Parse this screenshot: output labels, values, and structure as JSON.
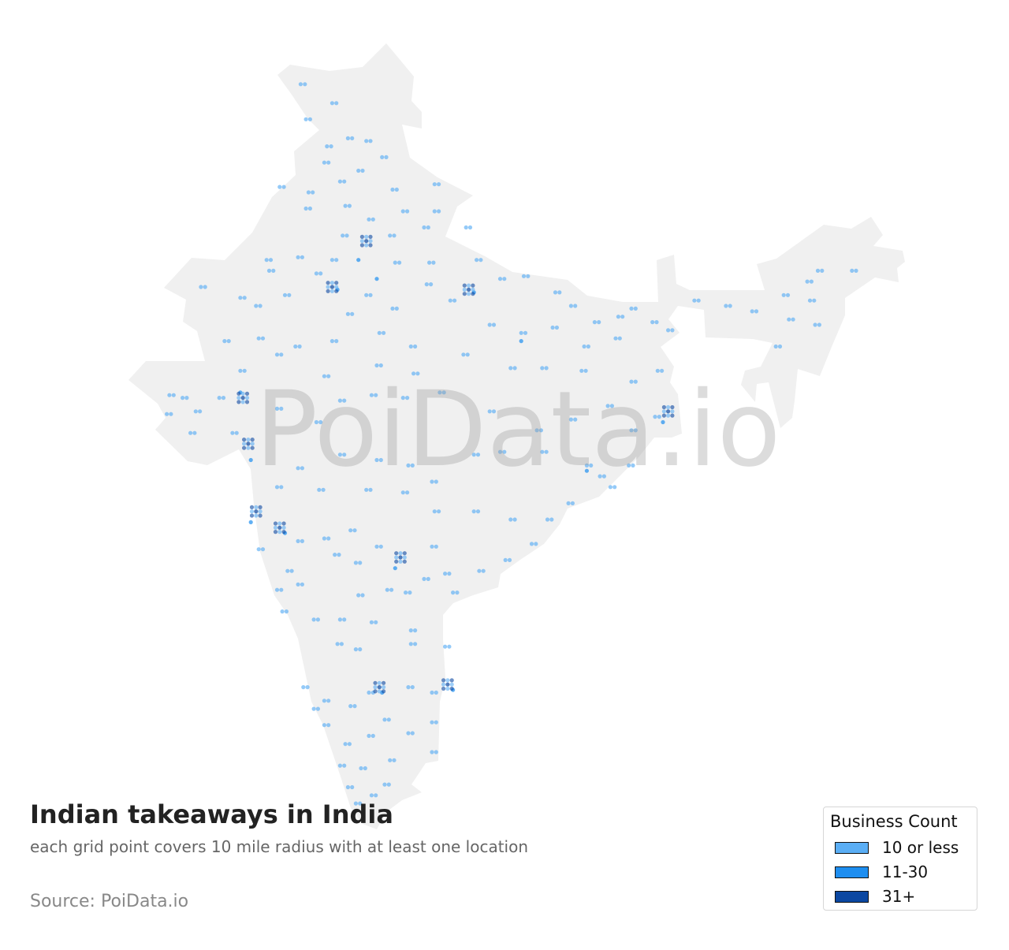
{
  "title": "Indian takeaways in India",
  "subtitle": "each grid point covers 10 mile radius with at least one location",
  "source": "Source: PoiData.io",
  "watermark": "PoiData.io",
  "colors": {
    "land": "#f0f0f0",
    "light": "#5aaef5",
    "medium": "#1e8ef0",
    "dark": "#0b47a1",
    "watermark": "#9a9a9a"
  },
  "legend": {
    "title": "Business Count",
    "items": [
      {
        "label": "10 or less",
        "color": "#5aaef5"
      },
      {
        "label": "11-30",
        "color": "#1e8ef0"
      },
      {
        "label": "31+",
        "color": "#0b47a1"
      }
    ]
  },
  "map_data": {
    "region": "India",
    "units": "lon/lat",
    "points_10_or_less": [
      [
        74.5,
        35.5
      ],
      [
        75.7,
        34.8
      ],
      [
        74.7,
        34.2
      ],
      [
        75.5,
        33.2
      ],
      [
        76.3,
        33.5
      ],
      [
        77.0,
        33.4
      ],
      [
        75.4,
        32.6
      ],
      [
        76.7,
        32.3
      ],
      [
        77.6,
        32.8
      ],
      [
        76.0,
        31.9
      ],
      [
        74.8,
        31.5
      ],
      [
        78.0,
        31.6
      ],
      [
        79.6,
        31.8
      ],
      [
        73.7,
        31.7
      ],
      [
        74.7,
        30.9
      ],
      [
        76.2,
        31.0
      ],
      [
        77.1,
        30.5
      ],
      [
        78.4,
        30.8
      ],
      [
        79.6,
        30.8
      ],
      [
        76.1,
        29.9
      ],
      [
        77.9,
        29.9
      ],
      [
        79.2,
        30.2
      ],
      [
        80.8,
        30.2
      ],
      [
        75.7,
        29.0
      ],
      [
        74.4,
        29.1
      ],
      [
        73.2,
        29.0
      ],
      [
        78.1,
        28.9
      ],
      [
        79.4,
        28.9
      ],
      [
        81.2,
        29.0
      ],
      [
        70.7,
        28.0
      ],
      [
        73.3,
        28.6
      ],
      [
        73.9,
        27.7
      ],
      [
        72.2,
        27.6
      ],
      [
        72.8,
        27.3
      ],
      [
        75.1,
        28.5
      ],
      [
        76.3,
        27.0
      ],
      [
        77.0,
        27.7
      ],
      [
        78.0,
        27.2
      ],
      [
        79.3,
        28.1
      ],
      [
        80.2,
        27.5
      ],
      [
        82.1,
        28.3
      ],
      [
        83.0,
        28.4
      ],
      [
        84.2,
        27.8
      ],
      [
        84.8,
        27.3
      ],
      [
        85.7,
        26.7
      ],
      [
        86.6,
        26.9
      ],
      [
        87.1,
        27.2
      ],
      [
        81.7,
        26.6
      ],
      [
        82.9,
        26.3
      ],
      [
        84.1,
        26.5
      ],
      [
        85.3,
        25.8
      ],
      [
        86.5,
        26.1
      ],
      [
        87.9,
        26.7
      ],
      [
        88.5,
        26.4
      ],
      [
        89.5,
        27.5
      ],
      [
        90.7,
        27.3
      ],
      [
        91.7,
        27.1
      ],
      [
        92.9,
        27.7
      ],
      [
        93.9,
        27.5
      ],
      [
        94.2,
        28.6
      ],
      [
        93.8,
        28.2
      ],
      [
        95.5,
        28.6
      ],
      [
        93.1,
        26.8
      ],
      [
        92.6,
        25.8
      ],
      [
        94.1,
        26.6
      ],
      [
        71.6,
        26.0
      ],
      [
        72.9,
        26.1
      ],
      [
        74.3,
        25.8
      ],
      [
        75.7,
        26.0
      ],
      [
        77.5,
        26.3
      ],
      [
        78.7,
        25.8
      ],
      [
        80.7,
        25.5
      ],
      [
        82.5,
        25.0
      ],
      [
        83.7,
        25.0
      ],
      [
        85.2,
        24.9
      ],
      [
        87.1,
        24.5
      ],
      [
        88.1,
        24.9
      ],
      [
        69.5,
        24.0
      ],
      [
        70.0,
        23.9
      ],
      [
        70.5,
        23.4
      ],
      [
        71.4,
        23.9
      ],
      [
        69.4,
        23.3
      ],
      [
        70.3,
        22.6
      ],
      [
        72.2,
        24.9
      ],
      [
        73.6,
        25.5
      ],
      [
        75.4,
        24.7
      ],
      [
        77.4,
        25.1
      ],
      [
        78.8,
        24.8
      ],
      [
        79.8,
        24.1
      ],
      [
        81.7,
        23.4
      ],
      [
        83.5,
        22.7
      ],
      [
        84.8,
        23.1
      ],
      [
        86.2,
        23.6
      ],
      [
        87.1,
        22.7
      ],
      [
        88.0,
        23.2
      ],
      [
        71.9,
        22.6
      ],
      [
        73.6,
        23.5
      ],
      [
        75.1,
        23.0
      ],
      [
        76.0,
        23.8
      ],
      [
        77.2,
        24.0
      ],
      [
        78.4,
        23.9
      ],
      [
        76.0,
        21.8
      ],
      [
        77.4,
        21.6
      ],
      [
        78.6,
        21.4
      ],
      [
        79.5,
        20.8
      ],
      [
        81.1,
        21.8
      ],
      [
        82.1,
        21.9
      ],
      [
        83.7,
        21.9
      ],
      [
        85.4,
        21.4
      ],
      [
        85.9,
        21.0
      ],
      [
        86.3,
        20.6
      ],
      [
        87.0,
        21.4
      ],
      [
        74.4,
        21.3
      ],
      [
        73.6,
        20.6
      ],
      [
        75.2,
        20.5
      ],
      [
        77.0,
        20.5
      ],
      [
        78.4,
        20.4
      ],
      [
        79.6,
        19.7
      ],
      [
        81.1,
        19.7
      ],
      [
        82.5,
        19.4
      ],
      [
        83.9,
        19.4
      ],
      [
        84.7,
        20.0
      ],
      [
        72.9,
        18.3
      ],
      [
        74.4,
        18.6
      ],
      [
        75.4,
        18.7
      ],
      [
        76.4,
        19.0
      ],
      [
        77.4,
        18.4
      ],
      [
        79.5,
        18.4
      ],
      [
        75.8,
        18.1
      ],
      [
        76.6,
        17.8
      ],
      [
        74.0,
        17.5
      ],
      [
        74.4,
        17.0
      ],
      [
        73.6,
        16.8
      ],
      [
        76.7,
        16.6
      ],
      [
        77.8,
        16.8
      ],
      [
        78.5,
        16.7
      ],
      [
        79.2,
        17.2
      ],
      [
        80.0,
        17.4
      ],
      [
        80.3,
        16.7
      ],
      [
        81.3,
        17.5
      ],
      [
        82.3,
        17.9
      ],
      [
        83.3,
        18.5
      ],
      [
        73.8,
        16.0
      ],
      [
        75.0,
        15.7
      ],
      [
        76.0,
        15.7
      ],
      [
        77.2,
        15.6
      ],
      [
        78.7,
        15.3
      ],
      [
        75.9,
        14.8
      ],
      [
        76.6,
        14.6
      ],
      [
        78.7,
        14.8
      ],
      [
        80.0,
        14.7
      ],
      [
        74.6,
        13.2
      ],
      [
        75.4,
        12.7
      ],
      [
        76.4,
        12.5
      ],
      [
        77.1,
        13.0
      ],
      [
        78.6,
        13.2
      ],
      [
        79.5,
        13.0
      ],
      [
        75.0,
        12.4
      ],
      [
        75.4,
        11.8
      ],
      [
        76.2,
        11.1
      ],
      [
        77.1,
        11.4
      ],
      [
        77.7,
        12.0
      ],
      [
        78.6,
        11.5
      ],
      [
        79.5,
        11.9
      ],
      [
        79.5,
        10.8
      ],
      [
        76.0,
        10.3
      ],
      [
        76.8,
        10.2
      ],
      [
        77.9,
        10.5
      ],
      [
        76.3,
        9.5
      ],
      [
        77.2,
        9.2
      ],
      [
        77.7,
        9.6
      ],
      [
        76.6,
        8.9
      ]
    ],
    "points_11_30": [
      [
        76.7,
        29.0
      ],
      [
        77.4,
        28.3
      ],
      [
        75.9,
        27.9
      ],
      [
        81.1,
        27.8
      ],
      [
        78.1,
        17.6
      ],
      [
        72.6,
        19.3
      ],
      [
        73.9,
        18.9
      ],
      [
        88.3,
        23.0
      ],
      [
        77.6,
        13.0
      ],
      [
        80.3,
        13.1
      ],
      [
        72.6,
        21.6
      ],
      [
        72.2,
        24.1
      ],
      [
        85.4,
        21.2
      ],
      [
        82.9,
        26.0
      ]
    ],
    "points_31_plus": [
      [
        77.0,
        29.7
      ],
      [
        75.7,
        28.0
      ],
      [
        80.9,
        27.9
      ],
      [
        72.3,
        23.9
      ],
      [
        72.8,
        19.7
      ],
      [
        73.7,
        19.1
      ],
      [
        78.3,
        18.0
      ],
      [
        77.5,
        13.2
      ],
      [
        80.1,
        13.3
      ],
      [
        88.5,
        23.4
      ],
      [
        72.5,
        22.2
      ]
    ]
  }
}
